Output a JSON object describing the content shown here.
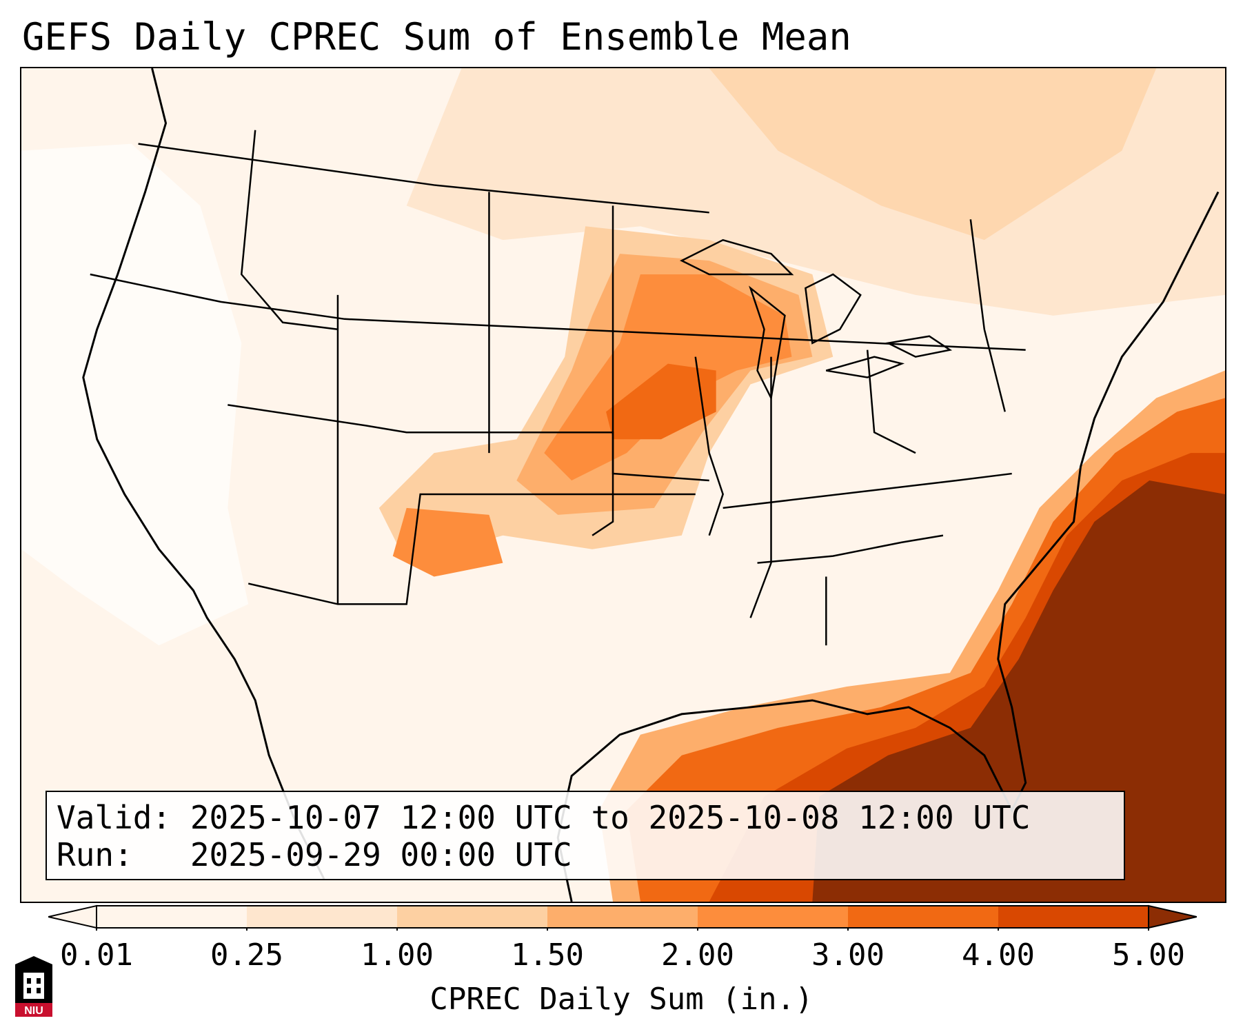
{
  "title": "GEFS Daily CPREC Sum of Ensemble Mean",
  "info": {
    "valid": "Valid: 2025-10-07 12:00 UTC to 2025-10-08 12:00 UTC",
    "run": "Run:   2025-09-29 00:00 UTC"
  },
  "colorbar": {
    "label": "CPREC Daily Sum (in.)",
    "ticks": [
      "0.01",
      "0.25",
      "1.00",
      "1.50",
      "2.00",
      "3.00",
      "4.00",
      "5.00"
    ],
    "colors": [
      "#fff5eb",
      "#fee6ce",
      "#fdd0a2",
      "#fdae6b",
      "#fd8d3c",
      "#f16913",
      "#d94801",
      "#8c2d04"
    ],
    "extend": "both"
  },
  "logo": {
    "text": "NIU",
    "colors": [
      "#c8102e",
      "#000000",
      "#ffffff"
    ]
  },
  "colors": {
    "outline": "#000000",
    "background": "#ffffff"
  }
}
